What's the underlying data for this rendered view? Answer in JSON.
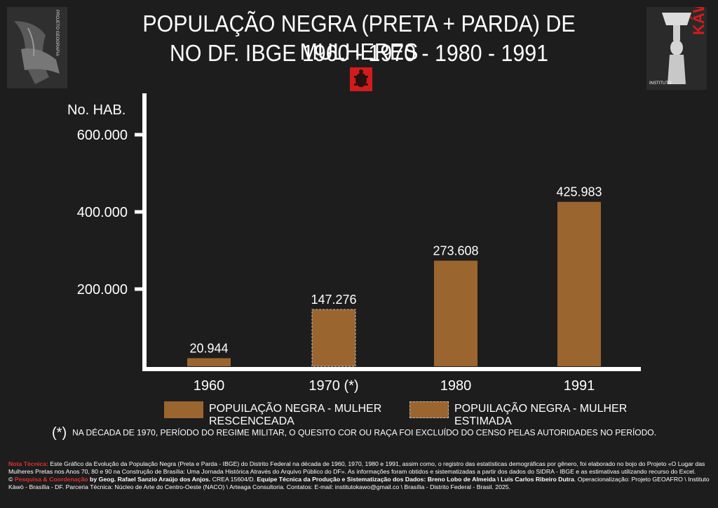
{
  "header": {
    "title_line1": "POPULAÇÃO NEGRA (PRETA + PARDA) DE MULHERES",
    "title_line2": "NO DF. IBGE 1960 - 1970 - 1980 - 1991"
  },
  "logos": {
    "left_text": "PROJETO GEOGRAFIA",
    "right_small": "INSTITUTO",
    "right_big": "KÁWÒ"
  },
  "chart_data": {
    "type": "bar",
    "title": "POPULAÇÃO NEGRA (PRETA + PARDA) DE MULHERES NO DF. IBGE 1960 - 1970 - 1980 - 1991",
    "ylabel": "No. HAB.",
    "xlabel": "",
    "ylim": [
      0,
      600000
    ],
    "yticks": [
      200000,
      400000,
      600000
    ],
    "ytick_labels": [
      "200.000",
      "400.000",
      "600.000"
    ],
    "categories": [
      "1960",
      "1970 (*)",
      "1980",
      "1991"
    ],
    "values": [
      20944,
      147276,
      273608,
      425983
    ],
    "value_labels": [
      "20.944",
      "147.276",
      "273.608",
      "425.983"
    ],
    "estimated": [
      false,
      true,
      false,
      false
    ],
    "bar_color": "#9b6530",
    "legend": [
      {
        "line1": "POPUILAÇÃO NEGRA - MULHER",
        "line2": "RESCENCEADA",
        "style": "solid"
      },
      {
        "line1": "POPUILAÇÃO NEGRA - MULHER",
        "line2": "ESTIMADA",
        "style": "dashed"
      }
    ]
  },
  "footnote": {
    "marker": "(*)",
    "text": "NA DÉCADA DE 1970, PERÍODO DO REGIME MILITAR, O QUESITO COR OU RAÇA FOI EXCLUÍDO DO CENSO PELAS AUTORIDADES NO PERÍODO."
  },
  "technote": {
    "label": "Nota Técnica:",
    "text": "Este Gráfico da Evolução da População Negra (Preta e Parda - IBGE) do Distrito Federal na década de 1960, 1970, 1980 e 1991, assim como, o registro das estatísticas demográficas por gênero, foi elaborado no bojo do Projeto «O Lugar das Mulheres Pretas nos Anos 70, 80 e 90 na Construção de Brasília: Uma Jornada Histórica Através do Arquivo Público do DF». As informações foram obtidos e sistematizadas a partir dos dados do SIDRA - IBGE e as estimativas utilizando recurso do Excel.",
    "copyright": "©",
    "research_label": "Pesquisa & Coordenação",
    "research_by": "by Geog. Rafael Sanzio Araújo dos Anjos.",
    "crea": "CREA 15604/D.",
    "team_label": "Equipe Técnica da Produção e Sistematização dos Dados: Breno Lobo de Almeida \\ Luís Carlos Ribeiro Dutra",
    "rest": ". Operacionalização: Projeto GEOAFRO \\ Instituto Kàwò - Brasília - DF. Parceria Técnica: Núcleo de Arte do Centro-Oeste (NACO) \\ Arteaga Consultoria. Contatos: E-mail: institutokawo@gmail.co \\ Brasília - Distrito Federal - Brasil. 2025."
  }
}
